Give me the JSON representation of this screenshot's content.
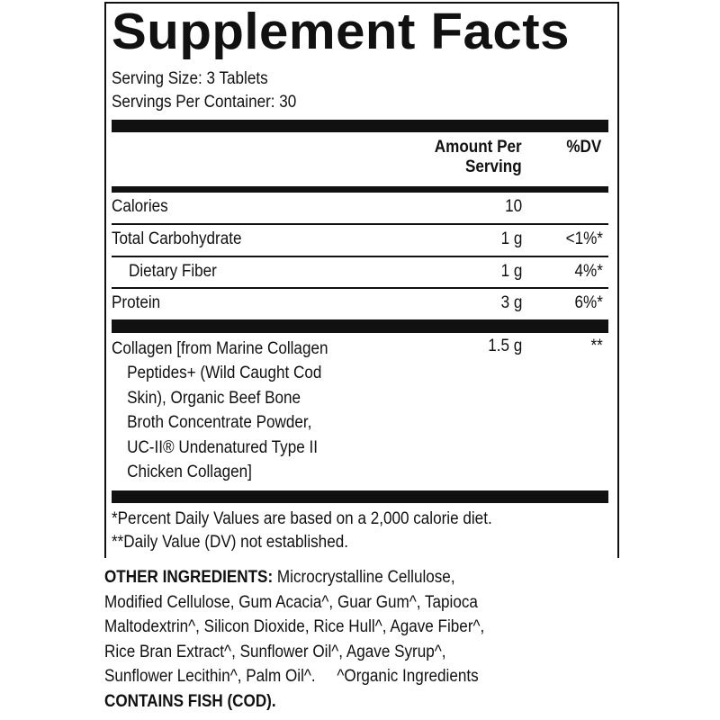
{
  "title": "Supplement Facts",
  "serving_size": "Serving Size: 3 Tablets",
  "servings_per_container": "Servings Per Container: 30",
  "header": {
    "amount_line1": "Amount Per",
    "amount_line2": "Serving",
    "dv": "%DV"
  },
  "rows": [
    {
      "name": "Calories",
      "amount": "10",
      "dv": ""
    },
    {
      "name": "Total Carbohydrate",
      "amount": "1 g",
      "dv": "<1%*"
    },
    {
      "name": "Dietary Fiber",
      "amount": "1 g",
      "dv": "4%*"
    },
    {
      "name": "Protein",
      "amount": "3 g",
      "dv": "6%*"
    }
  ],
  "collagen": {
    "lines": [
      "Collagen [from Marine Collagen",
      "Peptides+ (Wild Caught Cod",
      "Skin), Organic Beef Bone",
      "Broth Concentrate Powder,",
      "UC-II® Undenatured Type II",
      "Chicken Collagen]"
    ],
    "amount": "1.5 g",
    "dv": "**"
  },
  "footnotes": [
    "*Percent Daily Values are based on a 2,000 calorie diet.",
    "**Daily Value (DV) not established."
  ],
  "other_ingredients": {
    "label": "OTHER INGREDIENTS:",
    "lines": [
      " Microcrystalline Cellulose,",
      "Modified Cellulose, Gum Acacia^, Guar Gum^, Tapioca",
      "Maltodextrin^, Silicon Dioxide, Rice Hull^, Agave Fiber^,",
      "Rice Bran Extract^, Sunflower Oil^, Agave Syrup^,",
      "Sunflower Lecithin^, Palm Oil^.     ^Organic Ingredients"
    ],
    "contains": "CONTAINS FISH (COD)."
  }
}
